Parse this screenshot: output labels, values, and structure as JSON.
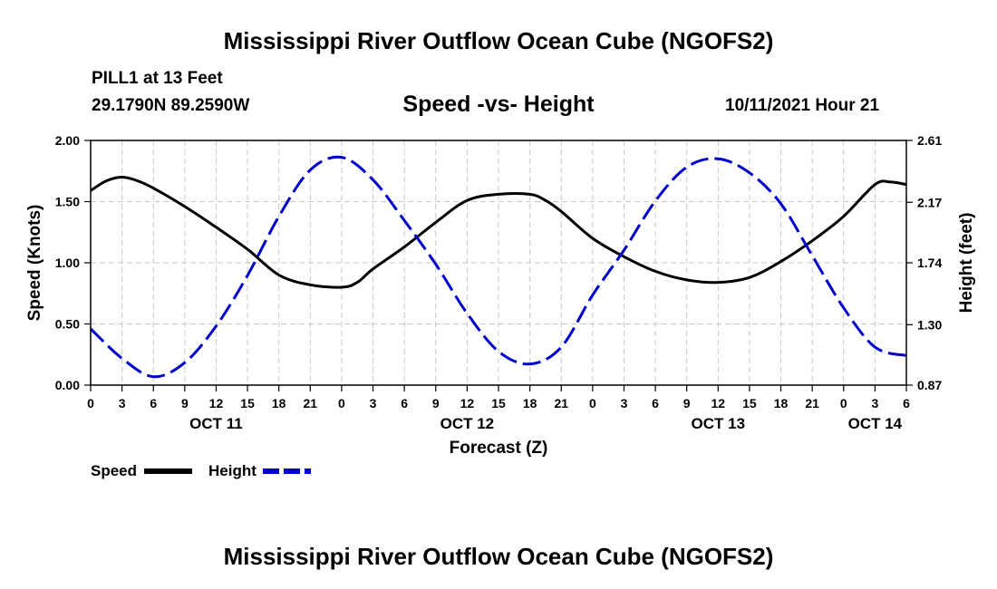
{
  "header": {
    "title": "Mississippi River Outflow Ocean Cube (NGOFS2)",
    "station": "PILL1 at 13 Feet",
    "coordinates": "29.1790N  89.2590W",
    "subtitle": "Speed -vs- Height",
    "run_time": "10/11/2021 Hour 21"
  },
  "footer": {
    "title": "Mississippi River Outflow Ocean Cube (NGOFS2)"
  },
  "chart_data": {
    "type": "line",
    "title": "Speed -vs- Height",
    "xlabel": "Forecast (Z)",
    "ylabel": "Speed (Knots)",
    "y2label": "Height (feet)",
    "x_unit": "hours since 2021-10-11 00Z",
    "xlim": [
      0,
      78
    ],
    "ylim": [
      0,
      2.0
    ],
    "y2lim": [
      0.87,
      2.61
    ],
    "grid": true,
    "legend_position": "bottom-left",
    "x_ticks": [
      {
        "x": 0,
        "label": "0"
      },
      {
        "x": 3,
        "label": "3"
      },
      {
        "x": 6,
        "label": "6"
      },
      {
        "x": 9,
        "label": "9"
      },
      {
        "x": 12,
        "label": "12"
      },
      {
        "x": 15,
        "label": "15"
      },
      {
        "x": 18,
        "label": "18"
      },
      {
        "x": 21,
        "label": "21"
      },
      {
        "x": 24,
        "label": "0"
      },
      {
        "x": 27,
        "label": "3"
      },
      {
        "x": 30,
        "label": "6"
      },
      {
        "x": 33,
        "label": "9"
      },
      {
        "x": 36,
        "label": "12"
      },
      {
        "x": 39,
        "label": "15"
      },
      {
        "x": 42,
        "label": "18"
      },
      {
        "x": 45,
        "label": "21"
      },
      {
        "x": 48,
        "label": "0"
      },
      {
        "x": 51,
        "label": "3"
      },
      {
        "x": 54,
        "label": "6"
      },
      {
        "x": 57,
        "label": "9"
      },
      {
        "x": 60,
        "label": "12"
      },
      {
        "x": 63,
        "label": "15"
      },
      {
        "x": 66,
        "label": "18"
      },
      {
        "x": 69,
        "label": "21"
      },
      {
        "x": 72,
        "label": "0"
      },
      {
        "x": 75,
        "label": "3"
      },
      {
        "x": 78,
        "label": "6"
      }
    ],
    "date_labels": [
      {
        "x": 12,
        "label": "OCT 11"
      },
      {
        "x": 36,
        "label": "OCT 12"
      },
      {
        "x": 60,
        "label": "OCT 13"
      },
      {
        "x": 75,
        "label": "OCT 14"
      }
    ],
    "y_ticks": [
      {
        "value": 0,
        "label": "0.00"
      },
      {
        "value": 0.5,
        "label": "0.50"
      },
      {
        "value": 1.0,
        "label": "1.00"
      },
      {
        "value": 1.5,
        "label": "1.50"
      },
      {
        "value": 2.0,
        "label": "2.00"
      }
    ],
    "y2_ticks": [
      {
        "value": 0.87,
        "label": "0.87"
      },
      {
        "value": 1.3,
        "label": "1.30"
      },
      {
        "value": 1.74,
        "label": "1.74"
      },
      {
        "value": 2.17,
        "label": "2.17"
      },
      {
        "value": 2.61,
        "label": "2.61"
      }
    ],
    "series": [
      {
        "name": "Speed",
        "axis": "left",
        "color": "#000000",
        "dash": "solid",
        "x": [
          0,
          1.5,
          3,
          4.5,
          6,
          9,
          12,
          15,
          18,
          21,
          24,
          25.5,
          27,
          30,
          33,
          36,
          39,
          42,
          43.5,
          45,
          48,
          51,
          54,
          57,
          60,
          63,
          66,
          69,
          72,
          75,
          76.5,
          78
        ],
        "values": [
          1.59,
          1.67,
          1.7,
          1.67,
          1.61,
          1.46,
          1.29,
          1.11,
          0.9,
          0.82,
          0.8,
          0.84,
          0.95,
          1.13,
          1.33,
          1.51,
          1.56,
          1.56,
          1.51,
          1.42,
          1.2,
          1.05,
          0.93,
          0.86,
          0.84,
          0.88,
          1.01,
          1.18,
          1.38,
          1.64,
          1.66,
          1.64
        ]
      },
      {
        "name": "Height",
        "axis": "right",
        "color": "#0000cc",
        "dash": "dashed",
        "x": [
          0,
          3,
          6,
          9,
          12,
          15,
          18,
          21,
          24,
          27,
          30,
          33,
          36,
          39,
          42,
          45,
          48,
          51,
          54,
          57,
          60,
          63,
          66,
          69,
          72,
          75,
          78
        ],
        "values": [
          1.27,
          1.06,
          0.93,
          1.03,
          1.29,
          1.65,
          2.07,
          2.4,
          2.49,
          2.33,
          2.04,
          1.73,
          1.38,
          1.11,
          1.02,
          1.14,
          1.51,
          1.83,
          2.18,
          2.42,
          2.48,
          2.38,
          2.16,
          1.79,
          1.42,
          1.14,
          1.08
        ]
      }
    ]
  }
}
